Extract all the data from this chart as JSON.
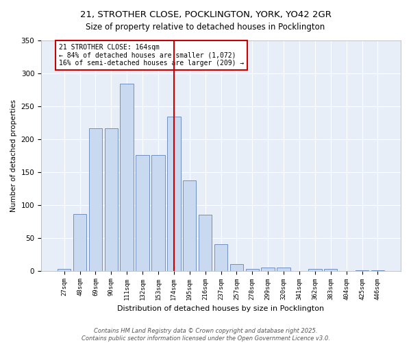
{
  "title": "21, STROTHER CLOSE, POCKLINGTON, YORK, YO42 2GR",
  "subtitle": "Size of property relative to detached houses in Pocklington",
  "xlabel": "Distribution of detached houses by size in Pocklington",
  "ylabel": "Number of detached properties",
  "categories": [
    "27sqm",
    "48sqm",
    "69sqm",
    "90sqm",
    "111sqm",
    "132sqm",
    "153sqm",
    "174sqm",
    "195sqm",
    "216sqm",
    "237sqm",
    "257sqm",
    "278sqm",
    "299sqm",
    "320sqm",
    "341sqm",
    "362sqm",
    "383sqm",
    "404sqm",
    "425sqm",
    "446sqm"
  ],
  "values": [
    3,
    86,
    217,
    217,
    284,
    176,
    176,
    234,
    137,
    85,
    40,
    10,
    3,
    5,
    5,
    0,
    3,
    3,
    0,
    1,
    1
  ],
  "bar_color": "#c9d9f0",
  "bar_edge_color": "#7090c0",
  "bg_color": "#e8eef8",
  "grid_color": "#ffffff",
  "vline_x": 7.0,
  "vline_color": "#cc0000",
  "annotation_text": "21 STROTHER CLOSE: 164sqm\n← 84% of detached houses are smaller (1,072)\n16% of semi-detached houses are larger (209) →",
  "annotation_box_color": "#cc0000",
  "footer_text": "Contains HM Land Registry data © Crown copyright and database right 2025.\nContains public sector information licensed under the Open Government Licence v3.0.",
  "ylim": [
    0,
    350
  ],
  "yticks": [
    0,
    50,
    100,
    150,
    200,
    250,
    300,
    350
  ]
}
